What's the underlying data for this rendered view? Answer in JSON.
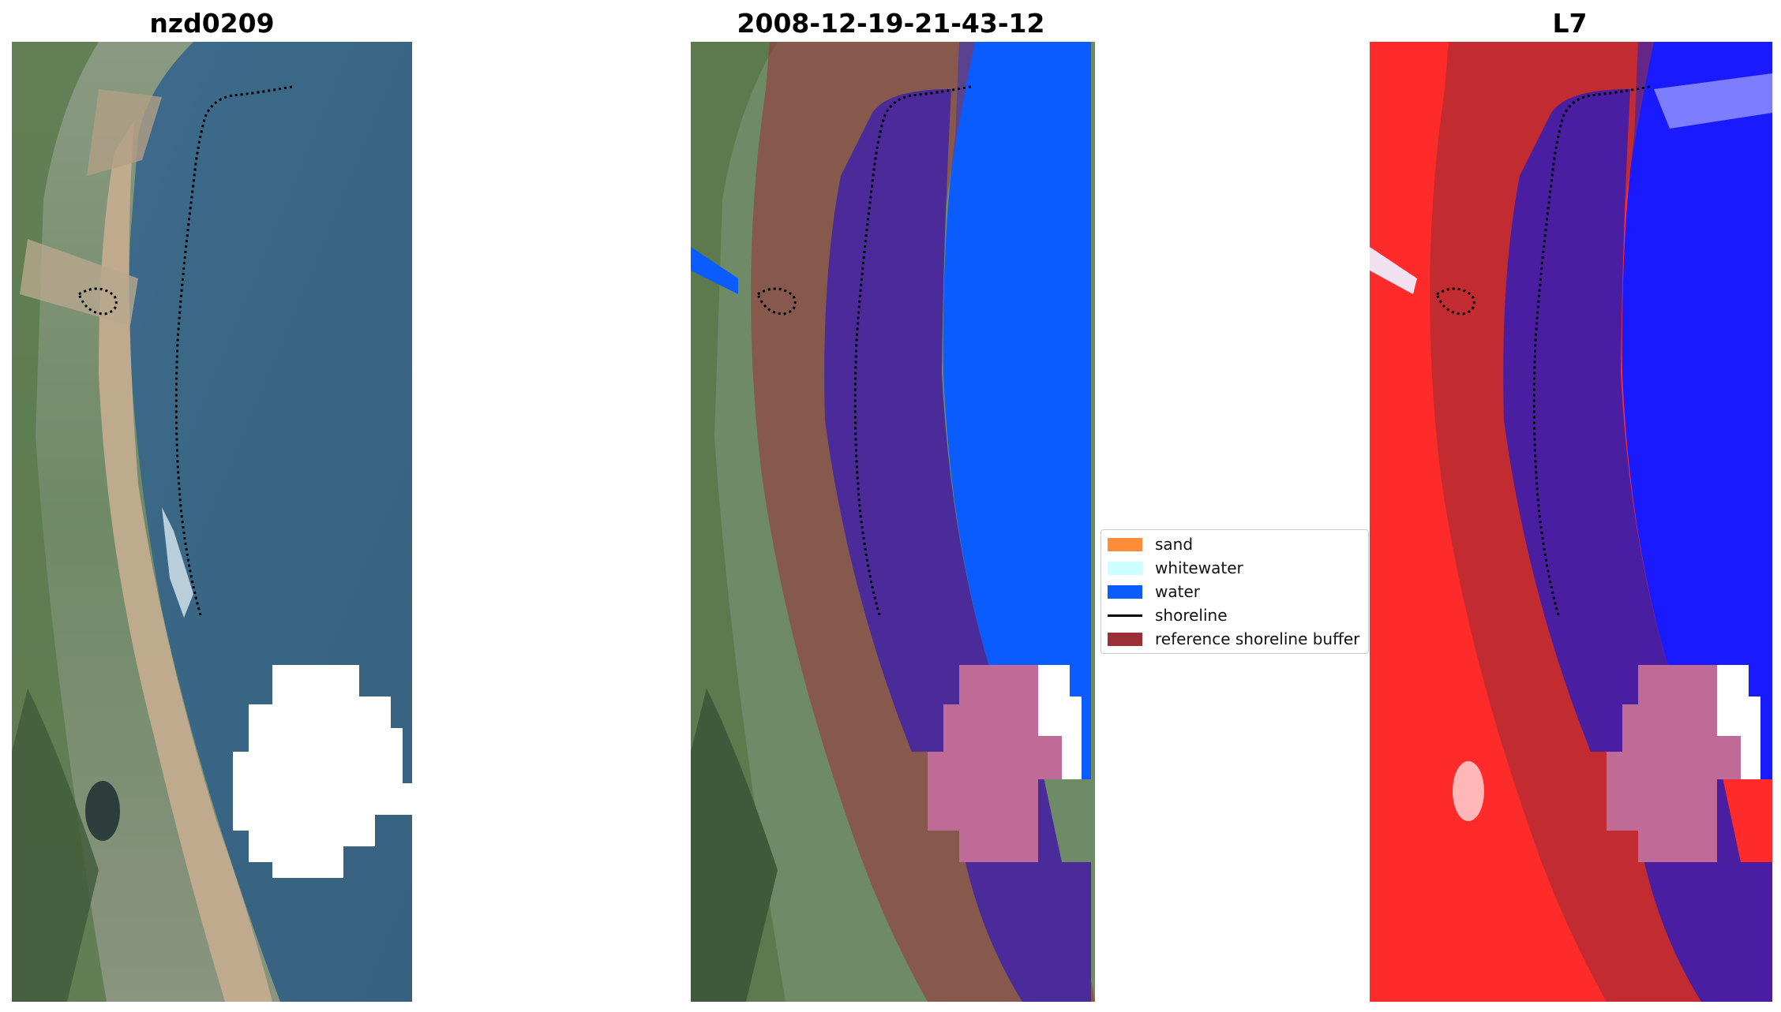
{
  "panels": [
    {
      "title": "nzd0209",
      "image": "satellite-rgb"
    },
    {
      "title": "2008-12-19-21-43-12",
      "image": "classified-overlay"
    },
    {
      "title": "L7",
      "image": "water-index-map"
    }
  ],
  "legend": {
    "items": [
      {
        "label": "sand",
        "color": "#ff8c38",
        "kind": "patch"
      },
      {
        "label": "whitewater",
        "color": "#ccffff",
        "kind": "patch"
      },
      {
        "label": "water",
        "color": "#0a5cff",
        "kind": "patch"
      },
      {
        "label": "shoreline",
        "color": "#000000",
        "kind": "line"
      },
      {
        "label": "reference shoreline buffer",
        "color": "#9a2f36",
        "kind": "patch"
      }
    ]
  },
  "colors": {
    "water_blue": "#0a5cff",
    "buffer": "#9a2f36",
    "cloud": "#ffffff",
    "index_red": "#ff2020",
    "index_blue": "#1010ff"
  }
}
